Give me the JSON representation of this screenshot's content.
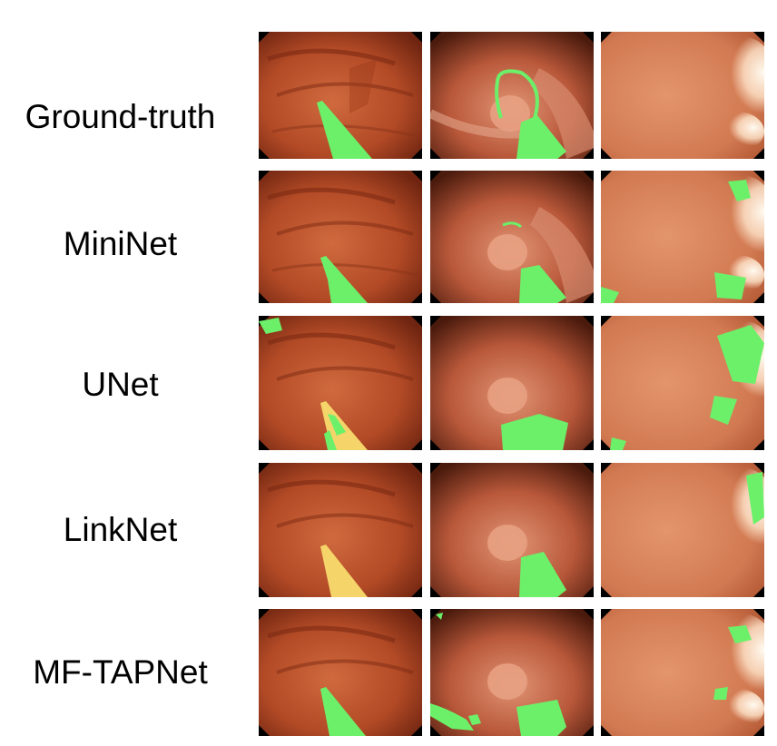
{
  "rows": [
    {
      "label": "Ground-truth"
    },
    {
      "label": "MiniNet"
    },
    {
      "label": "UNet"
    },
    {
      "label": "LinkNet"
    },
    {
      "label": "MF-TAPNet"
    }
  ],
  "colors": {
    "tissue_dark": "#7a2e14",
    "tissue": "#c45a32",
    "tissue_light": "#e08a5e",
    "highlight": "#fff4e6",
    "mask": "#6cf06a",
    "background": "#ffffff",
    "frame": "#000000"
  }
}
